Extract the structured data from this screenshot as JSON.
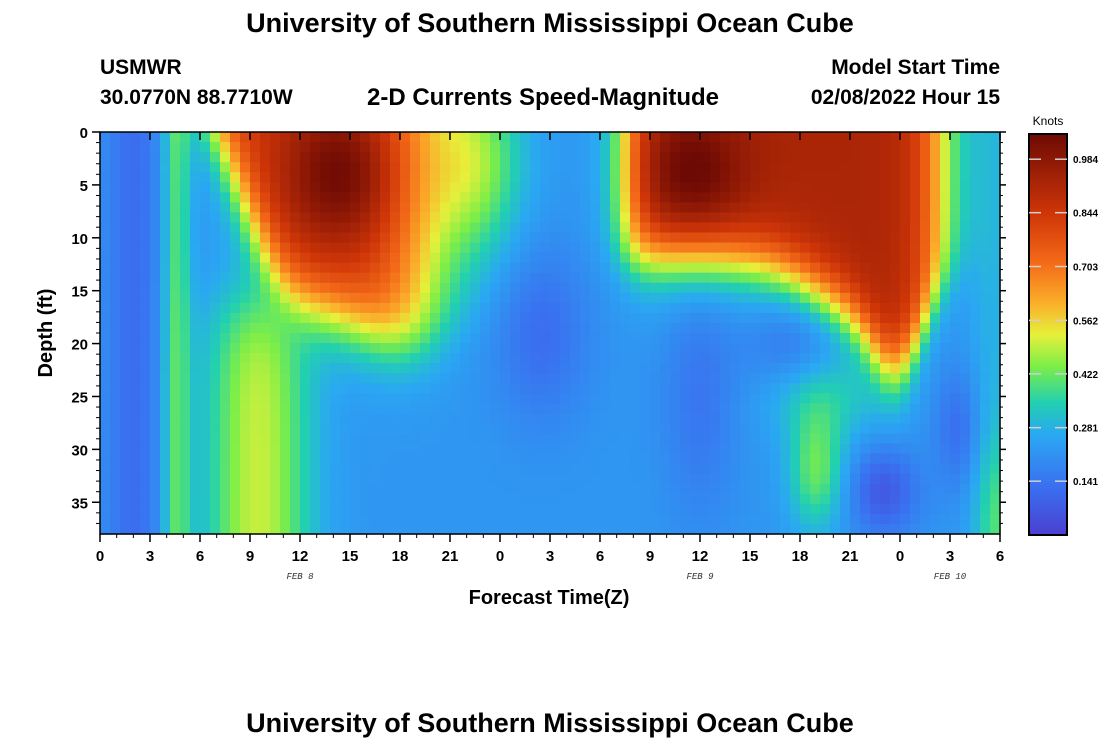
{
  "header": {
    "title": "University of Southern Mississippi Ocean Cube",
    "station_name": "USMWR",
    "station_coords": "30.0770N  88.7710W",
    "chart_title": "2-D Currents Speed-Magnitude",
    "model_start_label": "Model Start Time",
    "model_start_value": "02/08/2022 Hour 15"
  },
  "footer": {
    "title": "University of Southern Mississippi Ocean Cube"
  },
  "chart_data": {
    "type": "heatmap",
    "title": "2-D Currents Speed-Magnitude",
    "xlabel": "Forecast Time(Z)",
    "ylabel": "Depth (ft)",
    "x_range_hours": [
      0,
      54
    ],
    "y_range_ft": [
      0,
      38
    ],
    "x_ticks": [
      "0",
      "3",
      "6",
      "9",
      "12",
      "15",
      "18",
      "21",
      "0",
      "3",
      "6",
      "9",
      "12",
      "15",
      "18",
      "21",
      "0",
      "3",
      "6"
    ],
    "y_ticks": [
      "0",
      "5",
      "10",
      "15",
      "20",
      "25",
      "30",
      "35"
    ],
    "date_labels": [
      {
        "label": "FEB 8",
        "hour": 12
      },
      {
        "label": "FEB 9",
        "hour": 36
      },
      {
        "label": "FEB 10",
        "hour": 51
      }
    ],
    "colorbar": {
      "label": "Knots",
      "ticks": [
        "0.984",
        "0.844",
        "0.703",
        "0.562",
        "0.422",
        "0.281",
        "0.141"
      ],
      "range": [
        0.0,
        1.05
      ]
    },
    "approx_depth_mean_speed_by_hour": [
      {
        "hour": 0,
        "knots": 0.2
      },
      {
        "hour": 2,
        "knots": 0.1
      },
      {
        "hour": 5,
        "knots": 0.25
      },
      {
        "hour": 8,
        "knots": 0.62
      },
      {
        "hour": 11,
        "knots": 0.7
      },
      {
        "hour": 15,
        "knots": 0.8
      },
      {
        "hour": 19,
        "knots": 0.55
      },
      {
        "hour": 24,
        "knots": 0.25
      },
      {
        "hour": 27,
        "knots": 0.15
      },
      {
        "hour": 33,
        "knots": 0.8
      },
      {
        "hour": 36,
        "knots": 0.9
      },
      {
        "hour": 41,
        "knots": 0.75
      },
      {
        "hour": 48,
        "knots": 0.7
      },
      {
        "hour": 51,
        "knots": 0.2
      },
      {
        "hour": 54,
        "knots": 0.3
      }
    ]
  }
}
